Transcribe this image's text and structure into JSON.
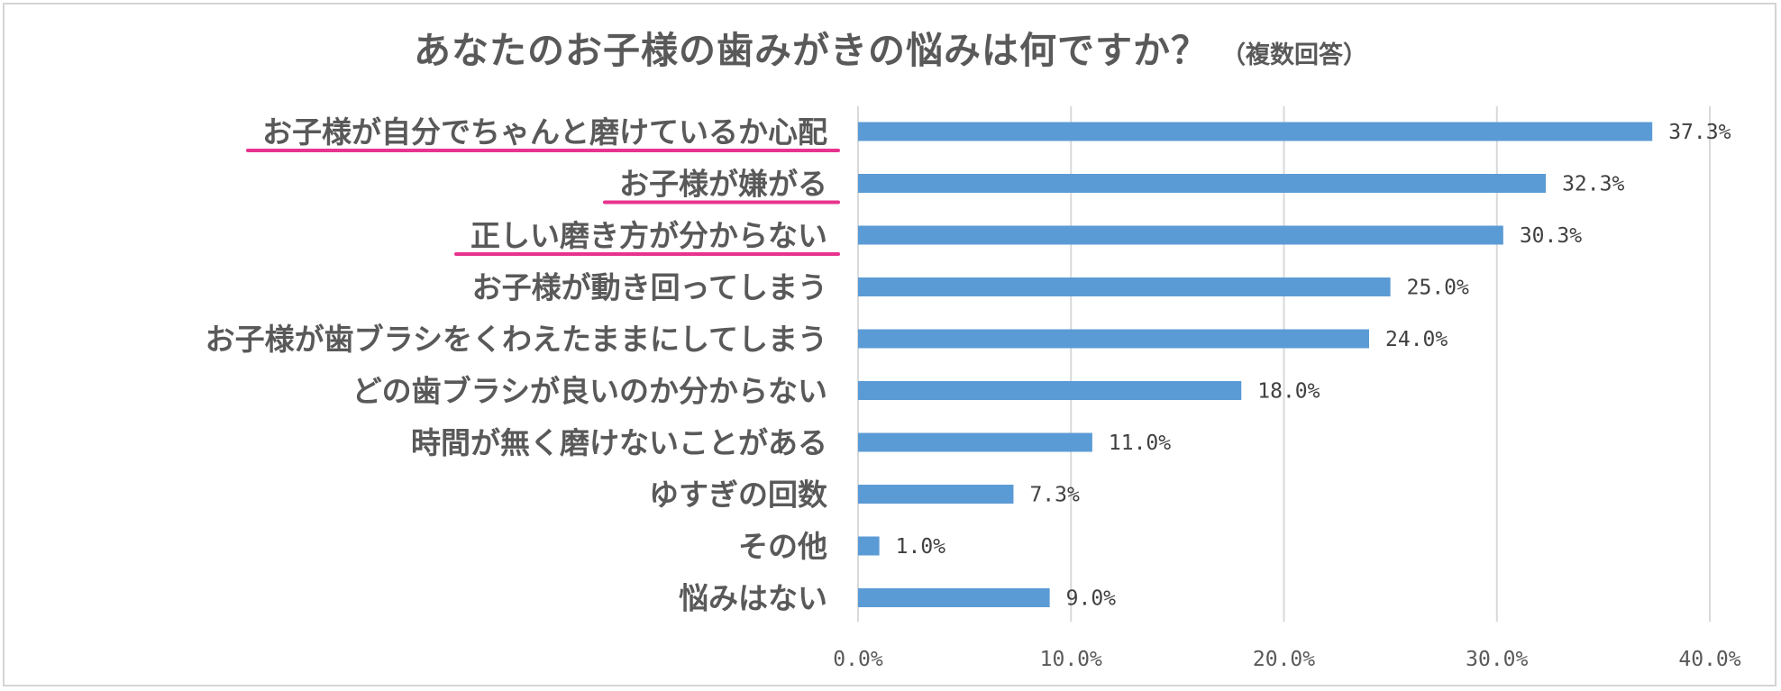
{
  "chart_data": {
    "type": "bar",
    "orientation": "horizontal",
    "title": "あなたのお子様の歯みがきの悩みは何ですか？",
    "subtitle": "（複数回答）",
    "categories": [
      "お子様が自分でちゃんと磨けているか心配",
      "お子様が嫌がる",
      "正しい磨き方が分からない",
      "お子様が動き回ってしまう",
      "お子様が歯ブラシをくわえたままにしてしまう",
      "どの歯ブラシが良いのか分からない",
      "時間が無く磨けないことがある",
      "ゆすぎの回数",
      "その他",
      "悩みはない"
    ],
    "values": [
      37.3,
      32.3,
      30.3,
      25.0,
      24.0,
      18.0,
      11.0,
      7.3,
      1.0,
      9.0
    ],
    "value_labels": [
      "37.3%",
      "32.3%",
      "30.3%",
      "25.0%",
      "24.0%",
      "18.0%",
      "11.0%",
      "7.3%",
      "1.0%",
      "9.0%"
    ],
    "highlighted": [
      0,
      1,
      2
    ],
    "xlim": [
      0,
      40
    ],
    "xticks": [
      0,
      10,
      20,
      30,
      40
    ],
    "xtick_labels": [
      "0.0%",
      "10.0%",
      "20.0%",
      "30.0%",
      "40.0%"
    ],
    "grid": "vertical",
    "legend": "none",
    "colors": {
      "bar": "#5b9bd5",
      "highlight_underline": "#e8338e",
      "grid": "#d9d9d9",
      "text": "#595959"
    }
  }
}
